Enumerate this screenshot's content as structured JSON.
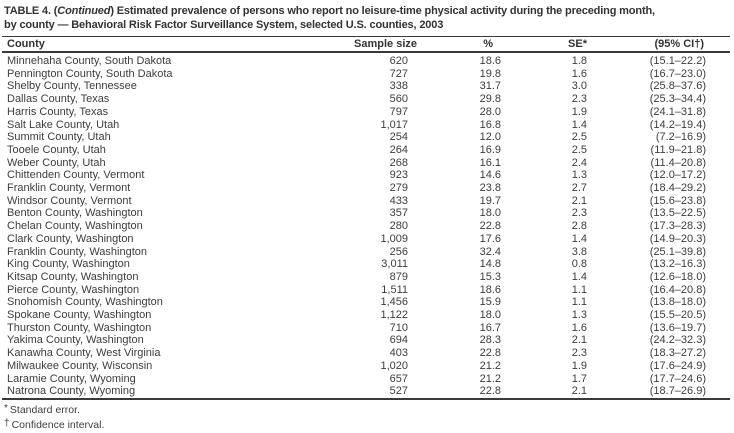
{
  "title": {
    "line1_prefix": "TABLE 4. (",
    "line1_italic": "Continued",
    "line1_suffix": ") Estimated prevalence of persons who report no leisure-time physical activity during the preceding month,",
    "line2": "by county — Behavioral Risk Factor Surveillance System, selected U.S. counties, 2003"
  },
  "columns": {
    "county": "County",
    "sample_size": "Sample size",
    "pct": "%",
    "se": "SE*",
    "ci": "(95% CI†)"
  },
  "rows": [
    {
      "county": "Minnehaha County, South Dakota",
      "sample_size": "620",
      "pct": "18.6",
      "se": "1.8",
      "ci": "(15.1–22.2)"
    },
    {
      "county": "Pennington County, South Dakota",
      "sample_size": "727",
      "pct": "19.8",
      "se": "1.6",
      "ci": "(16.7–23.0)"
    },
    {
      "county": "Shelby County, Tennessee",
      "sample_size": "338",
      "pct": "31.7",
      "se": "3.0",
      "ci": "(25.8–37.6)"
    },
    {
      "county": "Dallas County, Texas",
      "sample_size": "560",
      "pct": "29.8",
      "se": "2.3",
      "ci": "(25.3–34.4)"
    },
    {
      "county": "Harris County, Texas",
      "sample_size": "797",
      "pct": "28.0",
      "se": "1.9",
      "ci": "(24.1–31.8)"
    },
    {
      "county": "Salt Lake County, Utah",
      "sample_size": "1,017",
      "pct": "16.8",
      "se": "1.4",
      "ci": "(14.2–19.4)"
    },
    {
      "county": "Summit County, Utah",
      "sample_size": "254",
      "pct": "12.0",
      "se": "2.5",
      "ci": "(7.2–16.9)"
    },
    {
      "county": "Tooele County, Utah",
      "sample_size": "264",
      "pct": "16.9",
      "se": "2.5",
      "ci": "(11.9–21.8)"
    },
    {
      "county": "Weber County, Utah",
      "sample_size": "268",
      "pct": "16.1",
      "se": "2.4",
      "ci": "(11.4–20.8)"
    },
    {
      "county": "Chittenden County, Vermont",
      "sample_size": "923",
      "pct": "14.6",
      "se": "1.3",
      "ci": "(12.0–17.2)"
    },
    {
      "county": "Franklin County, Vermont",
      "sample_size": "279",
      "pct": "23.8",
      "se": "2.7",
      "ci": "(18.4–29.2)"
    },
    {
      "county": "Windsor County, Vermont",
      "sample_size": "433",
      "pct": "19.7",
      "se": "2.1",
      "ci": "(15.6–23.8)"
    },
    {
      "county": "Benton County, Washington",
      "sample_size": "357",
      "pct": "18.0",
      "se": "2.3",
      "ci": "(13.5–22.5)"
    },
    {
      "county": "Chelan County, Washington",
      "sample_size": "280",
      "pct": "22.8",
      "se": "2.8",
      "ci": "(17.3–28.3)"
    },
    {
      "county": "Clark County, Washington",
      "sample_size": "1,009",
      "pct": "17.6",
      "se": "1.4",
      "ci": "(14.9–20.3)"
    },
    {
      "county": "Franklin County, Washington",
      "sample_size": "256",
      "pct": "32.4",
      "se": "3.8",
      "ci": "(25.1–39.8)"
    },
    {
      "county": "King County, Washington",
      "sample_size": "3,011",
      "pct": "14.8",
      "se": "0.8",
      "ci": "(13.2–16.3)"
    },
    {
      "county": "Kitsap County, Washington",
      "sample_size": "879",
      "pct": "15.3",
      "se": "1.4",
      "ci": "(12.6–18.0)"
    },
    {
      "county": "Pierce County, Washington",
      "sample_size": "1,511",
      "pct": "18.6",
      "se": "1.1",
      "ci": "(16.4–20.8)"
    },
    {
      "county": "Snohomish County, Washington",
      "sample_size": "1,456",
      "pct": "15.9",
      "se": "1.1",
      "ci": "(13.8–18.0)"
    },
    {
      "county": "Spokane County, Washington",
      "sample_size": "1,122",
      "pct": "18.0",
      "se": "1.3",
      "ci": "(15.5–20.5)"
    },
    {
      "county": "Thurston County, Washington",
      "sample_size": "710",
      "pct": "16.7",
      "se": "1.6",
      "ci": "(13.6–19.7)"
    },
    {
      "county": "Yakima County, Washington",
      "sample_size": "694",
      "pct": "28.3",
      "se": "2.1",
      "ci": "(24.2–32.3)"
    },
    {
      "county": "Kanawha County, West Virginia",
      "sample_size": "403",
      "pct": "22.8",
      "se": "2.3",
      "ci": "(18.3–27.2)"
    },
    {
      "county": "Milwaukee County, Wisconsin",
      "sample_size": "1,020",
      "pct": "21.2",
      "se": "1.9",
      "ci": "(17.6–24.9)"
    },
    {
      "county": "Laramie County, Wyoming",
      "sample_size": "657",
      "pct": "21.2",
      "se": "1.7",
      "ci": "(17.7–24.6)"
    },
    {
      "county": "Natrona County, Wyoming",
      "sample_size": "527",
      "pct": "22.8",
      "se": "2.1",
      "ci": "(18.7–26.9)"
    }
  ],
  "footnotes": [
    {
      "marker": "*",
      "text": "Standard error."
    },
    {
      "marker": "†",
      "text": "Confidence interval."
    }
  ]
}
